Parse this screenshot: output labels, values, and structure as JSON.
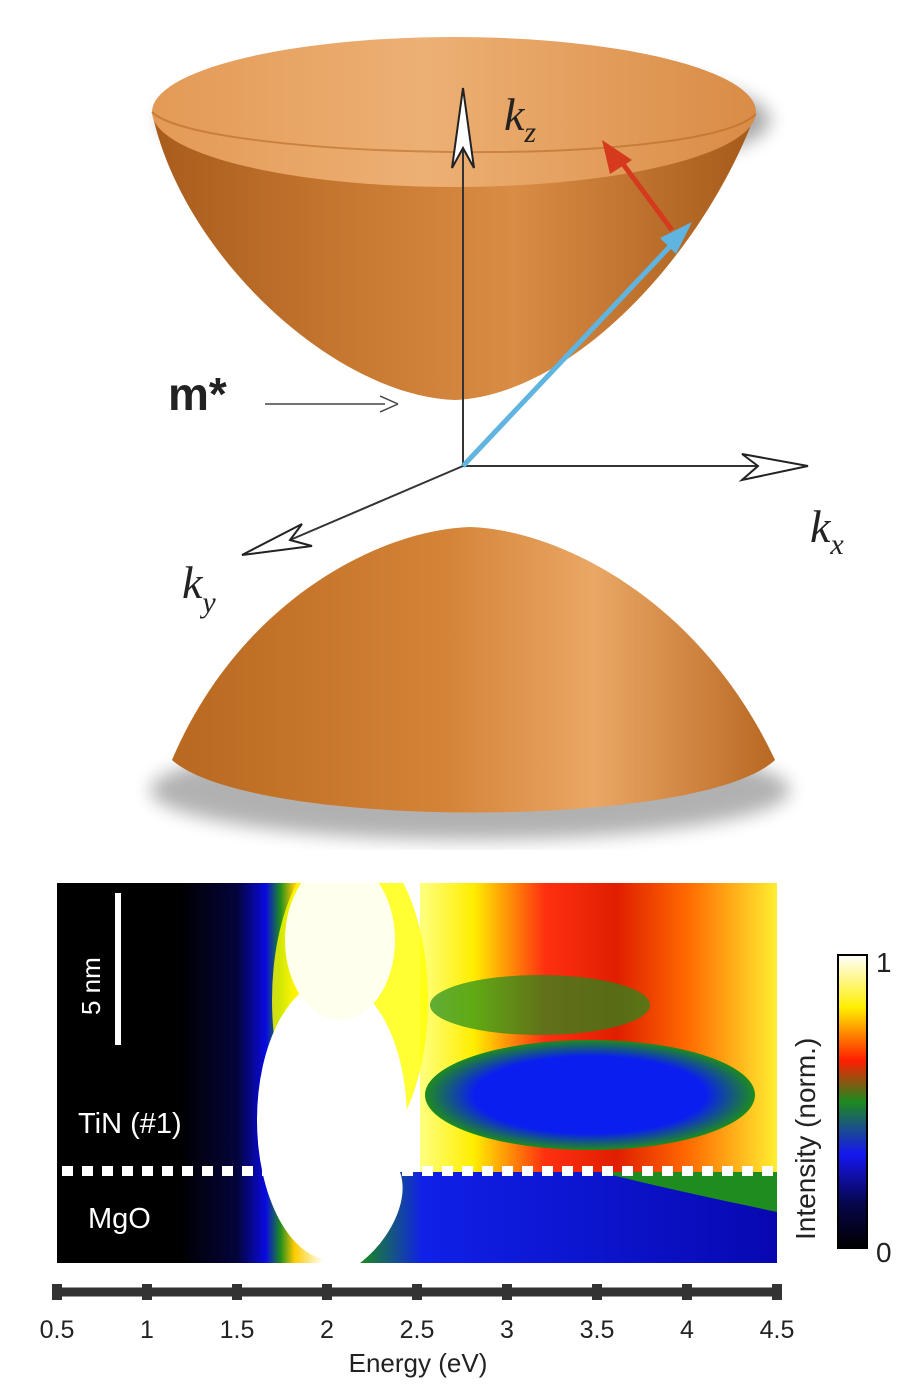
{
  "top_panel": {
    "mass_label": "m*",
    "axes": [
      {
        "symbol": "k",
        "subscript": "z"
      },
      {
        "symbol": "k",
        "subscript": "x"
      },
      {
        "symbol": "k",
        "subscript": "y"
      }
    ],
    "colors": {
      "band": "#c8782e",
      "band_light": "#e5a05c",
      "band_dark": "#9c561a",
      "wavevector_arrow": "#5fb4e0",
      "spin_arrow": "#d63a1e",
      "axis": "#333333"
    }
  },
  "bottom_panel": {
    "scale_bar_label": "5 nm",
    "layer_labels": [
      "TiN (#1)",
      "MgO"
    ],
    "colorbar": {
      "label": "Intensity (norm.)",
      "max_label": "1",
      "min_label": "0",
      "colormap": [
        "#000000",
        "#0a0a8c",
        "#1414ff",
        "#1e8c1e",
        "#ff1e00",
        "#ffff00",
        "#ffffff"
      ]
    },
    "chart_data": {
      "type": "heatmap",
      "xlabel": "Energy (eV)",
      "ylabel": "",
      "xlim": [
        0.5,
        4.5
      ],
      "x_ticks": [
        "0.5",
        "1",
        "1.5",
        "2",
        "2.5",
        "3",
        "3.5",
        "4",
        "4.5"
      ],
      "colorbar_range": [
        0,
        1
      ],
      "annotations": [
        "5 nm",
        "TiN (#1)",
        "MgO"
      ]
    }
  }
}
